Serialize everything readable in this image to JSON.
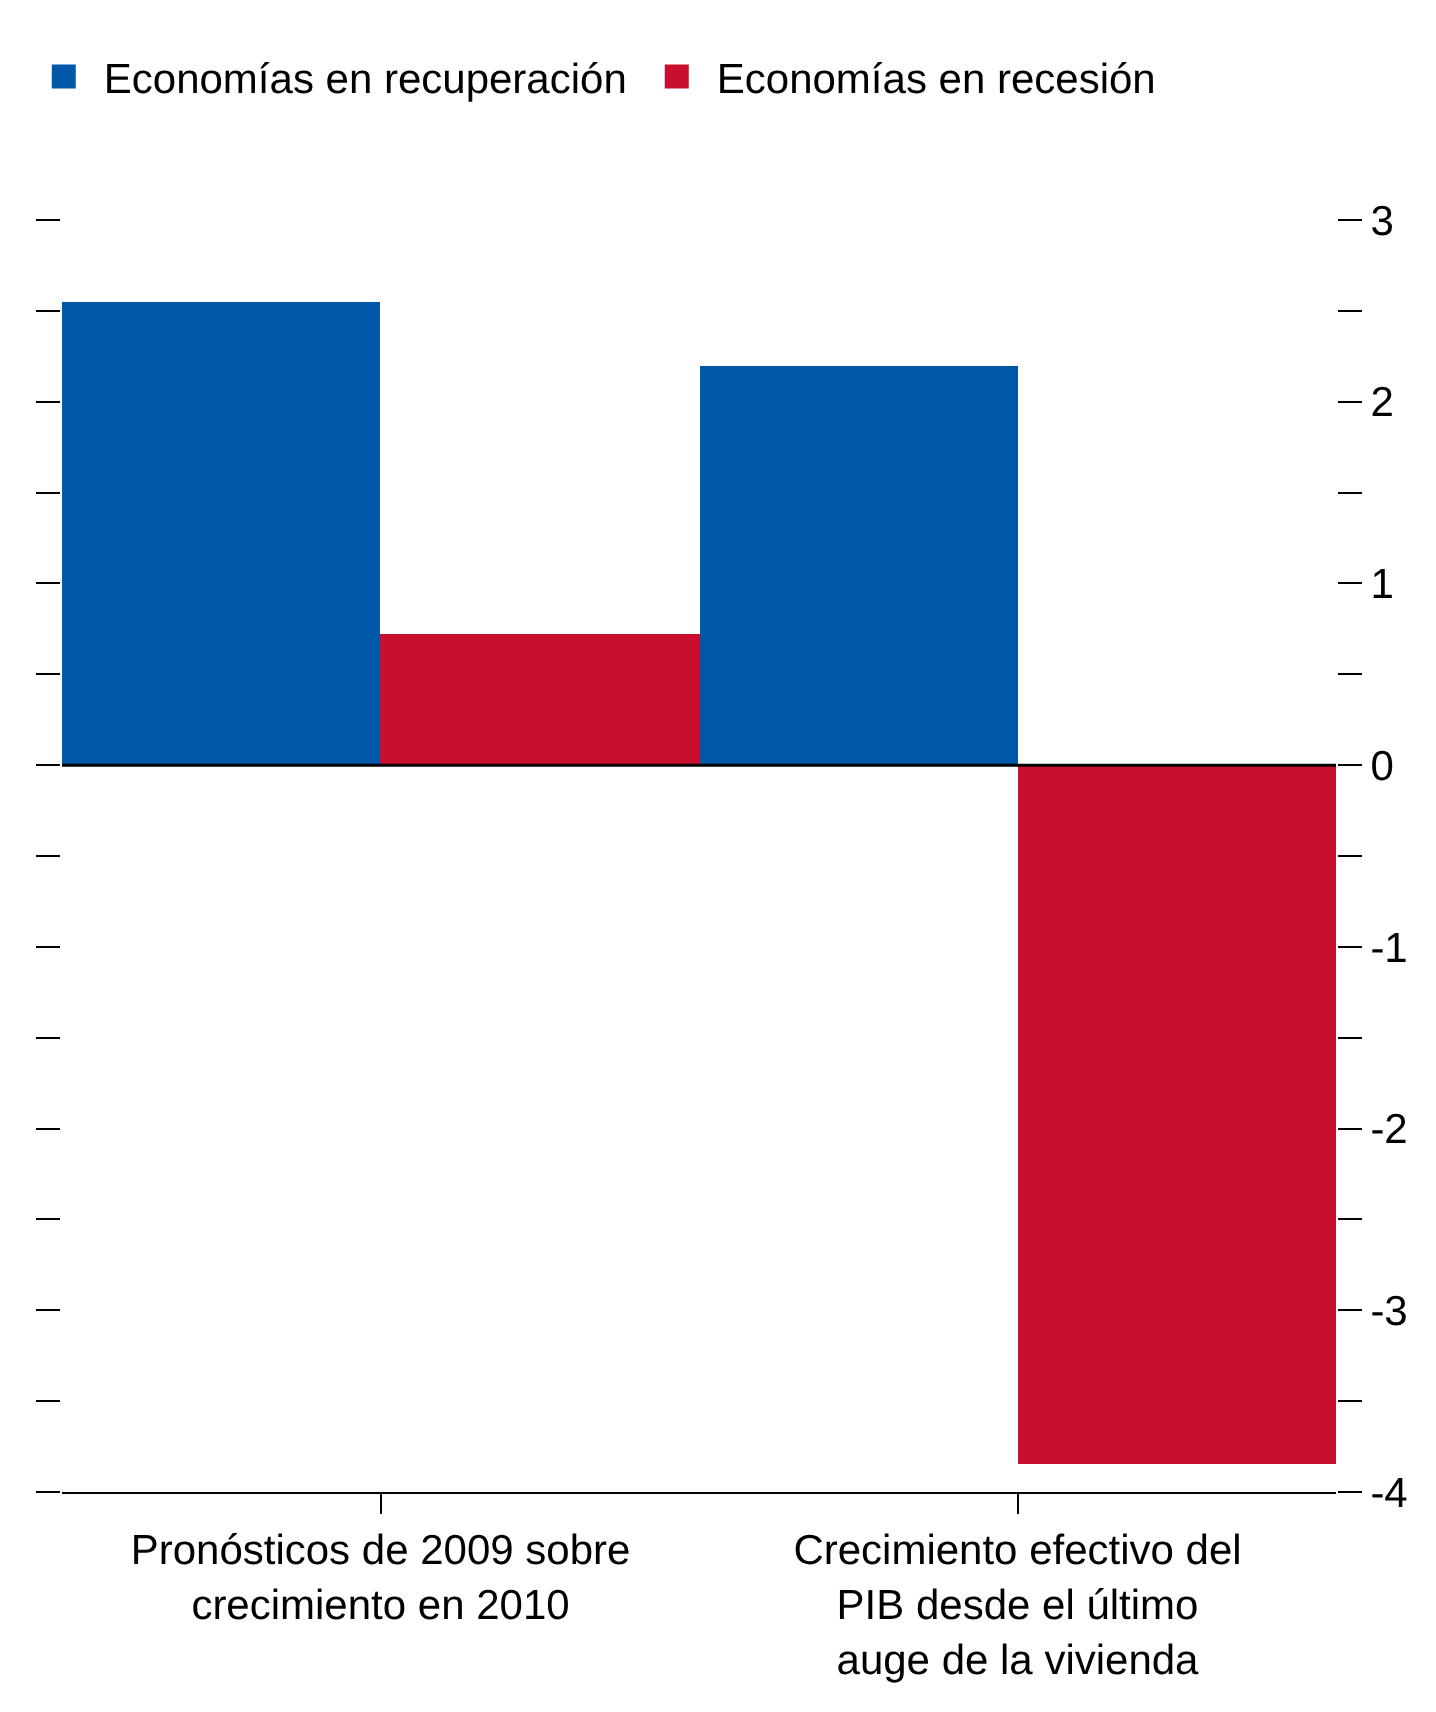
{
  "chart_data": {
    "type": "bar",
    "categories": [
      "Pronósticos de 2009 sobre\ncrecimiento en 2010",
      "Crecimiento efectivo del\nPIB desde el último\nauge de la vivienda"
    ],
    "series": [
      {
        "name": "Economías en recuperación",
        "color": "#0058a8",
        "values": [
          2.55,
          2.2
        ]
      },
      {
        "name": "Economías en recesión",
        "color": "#c8102e",
        "values": [
          0.72,
          -3.85
        ]
      }
    ],
    "ylim": [
      -4,
      3
    ],
    "ref_lines": [
      {
        "axis": "y",
        "value": 0,
        "color": "#000000"
      }
    ],
    "yticks": [
      -4,
      {
        "value": -3.5,
        "label": null
      },
      -3,
      {
        "value": -2.5,
        "label": null
      },
      -2,
      {
        "value": -1.5,
        "label": null
      },
      -1,
      {
        "value": -0.5,
        "label": null
      },
      0,
      {
        "value": 0.5,
        "label": null
      },
      1,
      {
        "value": 1.5,
        "label": null
      },
      2,
      {
        "value": 2.5,
        "label": null
      },
      3
    ],
    "legend": "top left"
  }
}
